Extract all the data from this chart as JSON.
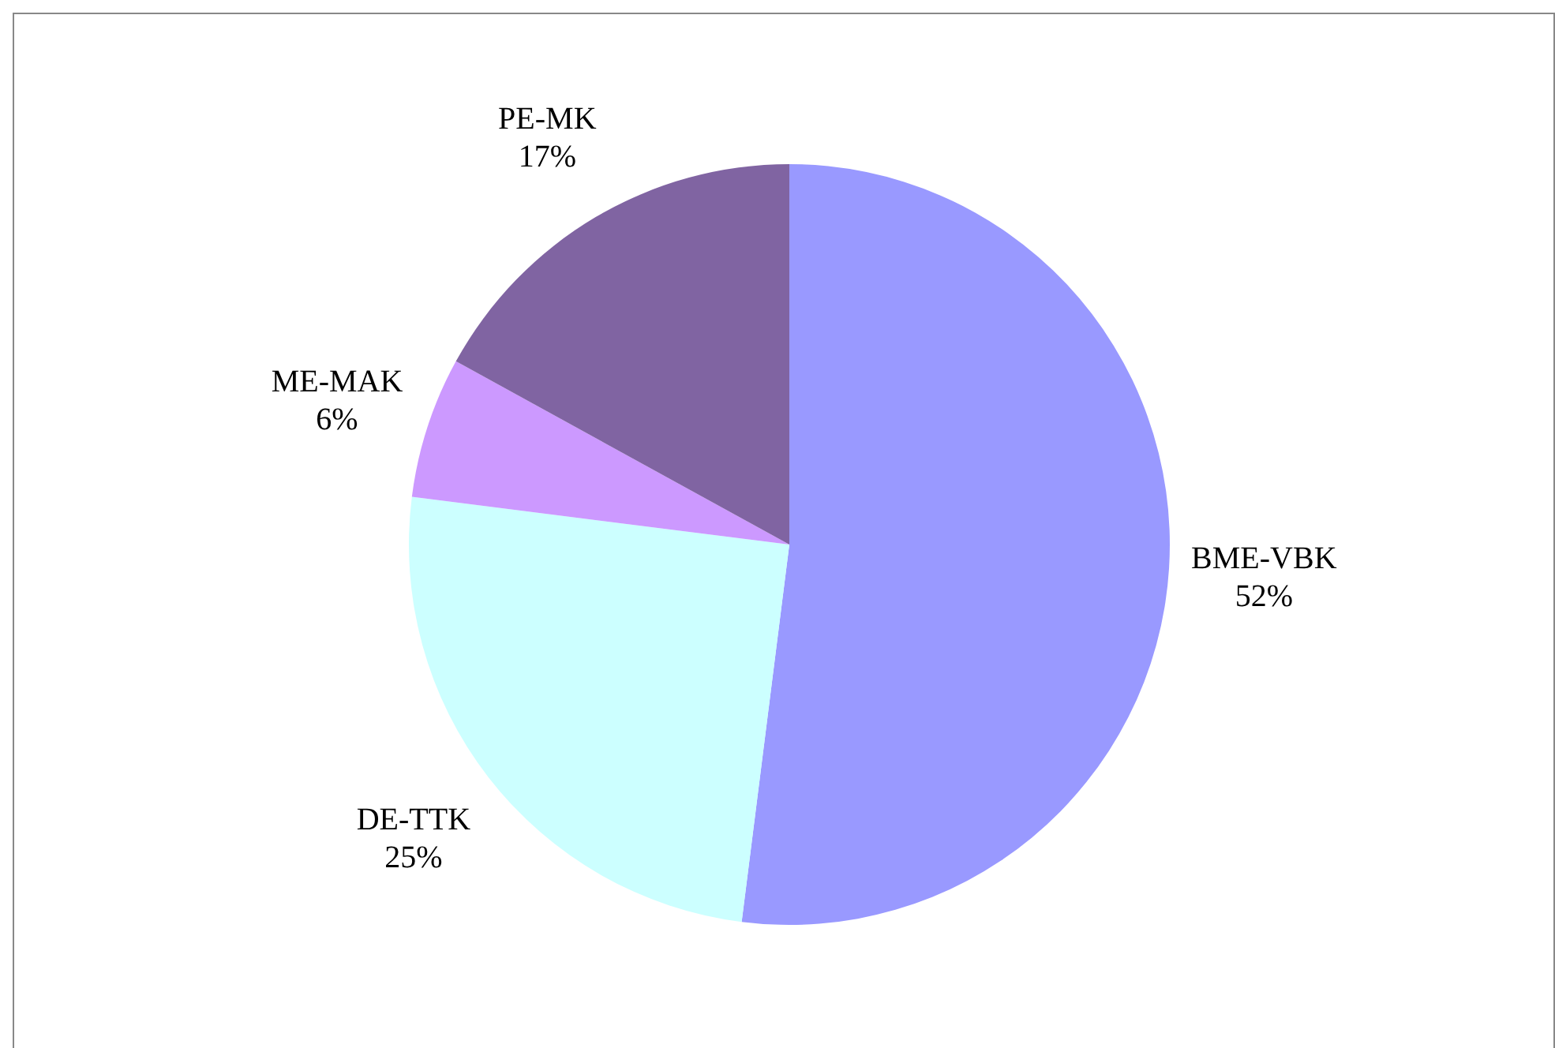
{
  "chart_data": {
    "type": "pie",
    "categories": [
      "BME-VBK",
      "DE-TTK",
      "ME-MAK",
      "PE-MK"
    ],
    "values": [
      52,
      25,
      6,
      17
    ],
    "value_labels": [
      "52%",
      "25%",
      "6%",
      "17%"
    ],
    "colors": [
      "#9999ff",
      "#ccffff",
      "#cc99ff",
      "#8064a2"
    ]
  }
}
